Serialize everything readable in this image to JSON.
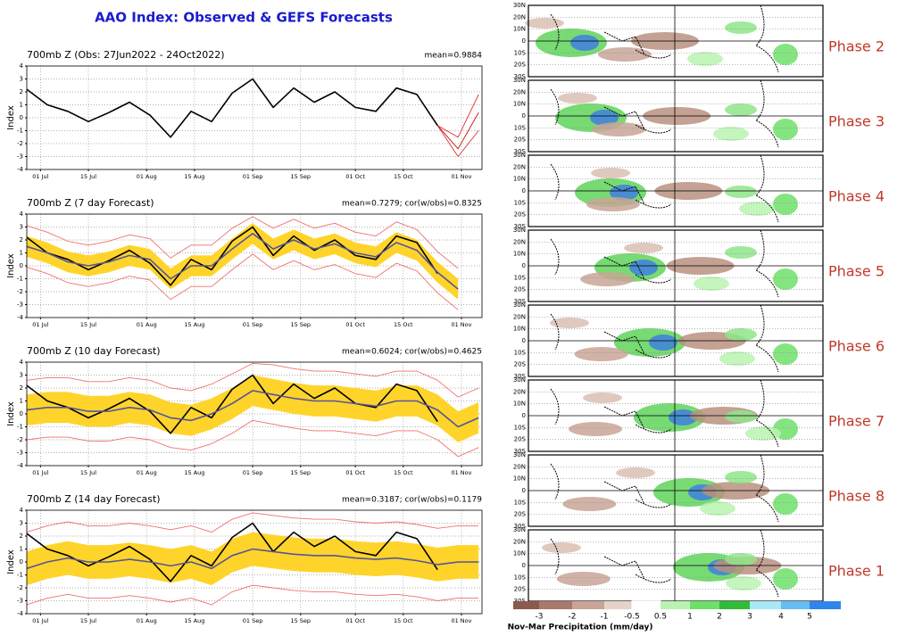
{
  "header": {
    "title": "AAO Index: Observed & GEFS Forecasts"
  },
  "chart_data": [
    {
      "type": "line",
      "title": "700mb Z (Obs: 27Jun2022 - 24Oct2022)",
      "annotation": "mean=0.9884",
      "ylabel": "Index",
      "x": [
        0,
        6,
        12,
        18,
        24,
        30,
        36,
        42,
        48,
        54,
        60,
        66,
        72,
        78,
        84,
        90,
        96,
        102,
        108,
        114,
        120,
        126,
        132
      ],
      "xlim": [
        0,
        133
      ],
      "ylim": [
        -4,
        4
      ],
      "yticks": [
        -4,
        -3,
        -2,
        -1,
        0,
        1,
        2,
        3,
        4
      ],
      "xticks": [
        {
          "value": 4,
          "label": "01 Jul"
        },
        {
          "value": 18,
          "label": "15 Jul"
        },
        {
          "value": 35,
          "label": "01 Aug"
        },
        {
          "value": 49,
          "label": "15 Aug"
        },
        {
          "value": 66,
          "label": "01 Sep"
        },
        {
          "value": 80,
          "label": "15 Sep"
        },
        {
          "value": 96,
          "label": "01 Oct"
        },
        {
          "value": 110,
          "label": "15 Oct"
        },
        {
          "value": 127,
          "label": "01 Nov"
        }
      ],
      "grid": true,
      "series": [
        {
          "color": "#e03030",
          "values": [
            null,
            null,
            null,
            null,
            null,
            null,
            null,
            null,
            null,
            null,
            null,
            null,
            null,
            null,
            null,
            null,
            null,
            null,
            null,
            null,
            -0.6,
            -1.5,
            1.8
          ]
        },
        {
          "color": "#e03030",
          "values": [
            null,
            null,
            null,
            null,
            null,
            null,
            null,
            null,
            null,
            null,
            null,
            null,
            null,
            null,
            null,
            null,
            null,
            null,
            null,
            null,
            -0.6,
            -3.0,
            -1.0
          ]
        },
        {
          "color": "#c01010",
          "values": [
            null,
            null,
            null,
            null,
            null,
            null,
            null,
            null,
            null,
            null,
            null,
            null,
            null,
            null,
            null,
            null,
            null,
            null,
            null,
            null,
            -0.6,
            -2.4,
            0.4
          ]
        },
        {
          "color": "#000000",
          "values": [
            2.2,
            1.0,
            0.5,
            -0.3,
            0.4,
            1.2,
            0.2,
            -1.5,
            0.5,
            -0.3,
            1.9,
            3.0,
            0.8,
            2.3,
            1.2,
            2.0,
            0.8,
            0.5,
            2.3,
            1.8,
            -0.6,
            null,
            null
          ]
        }
      ]
    },
    {
      "type": "line",
      "title": "700mb Z (7 day Forecast)",
      "annotation": "mean=0.7279; cor(w/obs)=0.8325",
      "ylabel": "Index",
      "x": [
        0,
        6,
        12,
        18,
        24,
        30,
        36,
        42,
        48,
        54,
        60,
        66,
        72,
        78,
        84,
        90,
        96,
        102,
        108,
        114,
        120,
        126,
        132
      ],
      "xlim": [
        0,
        133
      ],
      "ylim": [
        -4,
        4
      ],
      "yticks": [
        -4,
        -3,
        -2,
        -1,
        0,
        1,
        2,
        3,
        4
      ],
      "xticks": [
        {
          "value": 4,
          "label": "01 Jul"
        },
        {
          "value": 18,
          "label": "15 Jul"
        },
        {
          "value": 35,
          "label": "01 Aug"
        },
        {
          "value": 49,
          "label": "15 Aug"
        },
        {
          "value": 66,
          "label": "01 Sep"
        },
        {
          "value": 80,
          "label": "15 Sep"
        },
        {
          "value": 96,
          "label": "01 Oct"
        },
        {
          "value": 110,
          "label": "15 Oct"
        },
        {
          "value": 127,
          "label": "01 Nov"
        }
      ],
      "grid": true,
      "band": {
        "color": "#ffd42a",
        "upper": [
          2.3,
          1.8,
          1.1,
          0.8,
          1.1,
          1.6,
          1.3,
          -0.2,
          0.8,
          0.8,
          2.1,
          3.3,
          2.1,
          2.8,
          2.1,
          2.5,
          1.8,
          1.5,
          2.6,
          2.0,
          0.3,
          -1.0,
          null
        ],
        "lower": [
          0.7,
          0.2,
          -0.5,
          -0.8,
          -0.5,
          0.0,
          -0.3,
          -1.8,
          -0.8,
          -0.8,
          0.5,
          1.7,
          0.5,
          1.2,
          0.5,
          0.9,
          0.2,
          -0.1,
          1.0,
          0.4,
          -1.3,
          -2.6,
          null
        ]
      },
      "series": [
        {
          "color": "#f07070",
          "values": [
            3.1,
            2.6,
            1.9,
            1.6,
            1.9,
            2.4,
            2.1,
            0.6,
            1.6,
            1.6,
            2.9,
            3.8,
            2.9,
            3.6,
            2.9,
            3.3,
            2.6,
            2.3,
            3.4,
            2.8,
            1.1,
            -0.2,
            null
          ]
        },
        {
          "color": "#f07070",
          "values": [
            -0.1,
            -0.6,
            -1.3,
            -1.6,
            -1.3,
            -0.8,
            -1.1,
            -2.6,
            -1.6,
            -1.6,
            -0.3,
            0.9,
            -0.3,
            0.4,
            -0.3,
            0.1,
            -0.6,
            -0.9,
            0.2,
            -0.4,
            -2.1,
            -3.4,
            null
          ]
        },
        {
          "color": "#000000",
          "values": [
            2.2,
            1.0,
            0.5,
            -0.3,
            0.4,
            1.2,
            0.2,
            -1.5,
            0.5,
            -0.3,
            1.9,
            3.0,
            0.8,
            2.3,
            1.2,
            2.0,
            0.8,
            0.5,
            2.3,
            1.8,
            -0.6,
            null,
            null
          ]
        },
        {
          "color": "#55559a",
          "values": [
            1.5,
            1.0,
            0.3,
            0.0,
            0.3,
            0.8,
            0.5,
            -1.0,
            0.0,
            0.0,
            1.3,
            2.5,
            1.3,
            2.0,
            1.3,
            1.7,
            1.0,
            0.7,
            1.8,
            1.2,
            -0.5,
            -1.8,
            null
          ]
        }
      ]
    },
    {
      "type": "line",
      "title": "700mb Z (10 day Forecast)",
      "annotation": "mean=0.6024; cor(w/obs)=0.4625",
      "ylabel": "Index",
      "x": [
        0,
        6,
        12,
        18,
        24,
        30,
        36,
        42,
        48,
        54,
        60,
        66,
        72,
        78,
        84,
        90,
        96,
        102,
        108,
        114,
        120,
        126,
        132
      ],
      "xlim": [
        0,
        133
      ],
      "ylim": [
        -4,
        4
      ],
      "yticks": [
        -4,
        -3,
        -2,
        -1,
        0,
        1,
        2,
        3,
        4
      ],
      "xticks": [
        {
          "value": 4,
          "label": "01 Jul"
        },
        {
          "value": 18,
          "label": "15 Jul"
        },
        {
          "value": 35,
          "label": "01 Aug"
        },
        {
          "value": 49,
          "label": "15 Aug"
        },
        {
          "value": 66,
          "label": "01 Sep"
        },
        {
          "value": 80,
          "label": "15 Sep"
        },
        {
          "value": 96,
          "label": "01 Oct"
        },
        {
          "value": 110,
          "label": "15 Oct"
        },
        {
          "value": 127,
          "label": "01 Nov"
        }
      ],
      "grid": true,
      "band": {
        "color": "#ffd42a",
        "upper": [
          1.5,
          1.7,
          1.7,
          1.4,
          1.4,
          1.7,
          1.5,
          0.9,
          0.7,
          1.2,
          2.0,
          3.0,
          2.7,
          2.4,
          2.2,
          2.2,
          2.0,
          1.8,
          2.2,
          2.2,
          1.5,
          0.2,
          0.9
        ],
        "lower": [
          -0.9,
          -0.7,
          -0.7,
          -1.0,
          -1.0,
          -0.7,
          -0.9,
          -1.5,
          -1.7,
          -1.2,
          -0.4,
          0.6,
          0.3,
          0.0,
          -0.2,
          -0.2,
          -0.4,
          -0.6,
          -0.2,
          -0.2,
          -0.9,
          -2.2,
          -1.5
        ]
      },
      "series": [
        {
          "color": "#f07070",
          "values": [
            2.6,
            2.8,
            2.8,
            2.5,
            2.5,
            2.8,
            2.6,
            2.0,
            1.8,
            2.3,
            3.1,
            3.9,
            3.8,
            3.5,
            3.3,
            3.3,
            3.1,
            2.9,
            3.3,
            3.3,
            2.6,
            1.3,
            2.0
          ]
        },
        {
          "color": "#f07070",
          "values": [
            -2.0,
            -1.8,
            -1.8,
            -2.1,
            -2.1,
            -1.8,
            -2.0,
            -2.6,
            -2.8,
            -2.3,
            -1.5,
            -0.5,
            -0.8,
            -1.1,
            -1.3,
            -1.3,
            -1.5,
            -1.7,
            -1.3,
            -1.3,
            -2.0,
            -3.3,
            -2.6
          ]
        },
        {
          "color": "#000000",
          "values": [
            2.2,
            1.0,
            0.5,
            -0.3,
            0.4,
            1.2,
            0.2,
            -1.5,
            0.5,
            -0.3,
            1.9,
            3.0,
            0.8,
            2.3,
            1.2,
            2.0,
            0.8,
            0.5,
            2.3,
            1.8,
            -0.6,
            null,
            null
          ]
        },
        {
          "color": "#55559a",
          "values": [
            0.3,
            0.5,
            0.5,
            0.2,
            0.2,
            0.5,
            0.3,
            -0.3,
            -0.5,
            0.0,
            0.8,
            1.8,
            1.5,
            1.2,
            1.0,
            1.0,
            0.8,
            0.6,
            1.0,
            1.0,
            0.3,
            -1.0,
            -0.3
          ]
        }
      ]
    },
    {
      "type": "line",
      "title": "700mb Z (14 day Forecast)",
      "annotation": "mean=0.3187; cor(w/obs)=0.1179",
      "ylabel": "Index",
      "x": [
        0,
        6,
        12,
        18,
        24,
        30,
        36,
        42,
        48,
        54,
        60,
        66,
        72,
        78,
        84,
        90,
        96,
        102,
        108,
        114,
        120,
        126,
        132
      ],
      "xlim": [
        0,
        133
      ],
      "ylim": [
        -4,
        4
      ],
      "yticks": [
        -4,
        -3,
        -2,
        -1,
        0,
        1,
        2,
        3,
        4
      ],
      "xticks": [
        {
          "value": 4,
          "label": "01 Jul"
        },
        {
          "value": 18,
          "label": "15 Jul"
        },
        {
          "value": 35,
          "label": "01 Aug"
        },
        {
          "value": 49,
          "label": "15 Aug"
        },
        {
          "value": 66,
          "label": "01 Sep"
        },
        {
          "value": 80,
          "label": "15 Sep"
        },
        {
          "value": 96,
          "label": "01 Oct"
        },
        {
          "value": 110,
          "label": "15 Oct"
        },
        {
          "value": 127,
          "label": "01 Nov"
        }
      ],
      "grid": true,
      "band": {
        "color": "#ffd42a",
        "upper": [
          0.8,
          1.3,
          1.6,
          1.3,
          1.3,
          1.5,
          1.3,
          1.0,
          1.3,
          0.8,
          1.8,
          2.3,
          2.1,
          1.9,
          1.8,
          1.8,
          1.6,
          1.5,
          1.6,
          1.4,
          1.1,
          1.3,
          1.3
        ],
        "lower": [
          -1.8,
          -1.3,
          -1.0,
          -1.3,
          -1.3,
          -1.1,
          -1.3,
          -1.6,
          -1.3,
          -1.8,
          -0.8,
          -0.3,
          -0.5,
          -0.7,
          -0.8,
          -0.8,
          -1.0,
          -1.1,
          -1.0,
          -1.2,
          -1.5,
          -1.3,
          -1.3
        ]
      },
      "series": [
        {
          "color": "#f07070",
          "values": [
            2.3,
            2.8,
            3.1,
            2.8,
            2.8,
            3.0,
            2.8,
            2.5,
            2.8,
            2.3,
            3.3,
            3.8,
            3.6,
            3.4,
            3.3,
            3.3,
            3.1,
            3.0,
            3.1,
            2.9,
            2.6,
            2.8,
            2.8
          ]
        },
        {
          "color": "#f07070",
          "values": [
            -3.3,
            -2.8,
            -2.5,
            -2.8,
            -2.8,
            -2.6,
            -2.8,
            -3.1,
            -2.8,
            -3.3,
            -2.3,
            -1.8,
            -2.0,
            -2.2,
            -2.3,
            -2.3,
            -2.5,
            -2.6,
            -2.5,
            -2.7,
            -3.0,
            -2.8,
            -2.8
          ]
        },
        {
          "color": "#000000",
          "values": [
            2.2,
            1.0,
            0.5,
            -0.3,
            0.4,
            1.2,
            0.2,
            -1.5,
            0.5,
            -0.3,
            1.9,
            3.0,
            0.8,
            2.3,
            1.2,
            2.0,
            0.8,
            0.5,
            2.3,
            1.8,
            -0.6,
            null,
            null
          ]
        },
        {
          "color": "#55559a",
          "values": [
            -0.5,
            0.0,
            0.3,
            0.0,
            0.0,
            0.2,
            0.0,
            -0.3,
            0.0,
            -0.5,
            0.5,
            1.0,
            0.8,
            0.6,
            0.5,
            0.5,
            0.3,
            0.2,
            0.3,
            0.1,
            -0.2,
            0.0,
            0.0
          ]
        }
      ]
    }
  ],
  "maps": {
    "lat_labels": [
      "30N",
      "20N",
      "10N",
      "0",
      "10S",
      "20S",
      "30S"
    ],
    "panels": [
      {
        "label": "Phase 2"
      },
      {
        "label": "Phase 3"
      },
      {
        "label": "Phase 4"
      },
      {
        "label": "Phase 5"
      },
      {
        "label": "Phase 6"
      },
      {
        "label": "Phase 7"
      },
      {
        "label": "Phase 8"
      },
      {
        "label": "Phase 1"
      }
    ],
    "colorbar": {
      "ticks": [
        -3,
        -2,
        -1,
        -0.5,
        0.5,
        1,
        2,
        3,
        4,
        5
      ],
      "colors": [
        "#8a5a4c",
        "#a97a6c",
        "#c9a497",
        "#e6d2c8",
        "#ffffff",
        "#b9f3b0",
        "#6ee06a",
        "#2fbd38",
        "#a9e9f7",
        "#66bdf2",
        "#2f86ea"
      ],
      "label": "Nov-Mar Precipitation (mm/day)"
    }
  }
}
